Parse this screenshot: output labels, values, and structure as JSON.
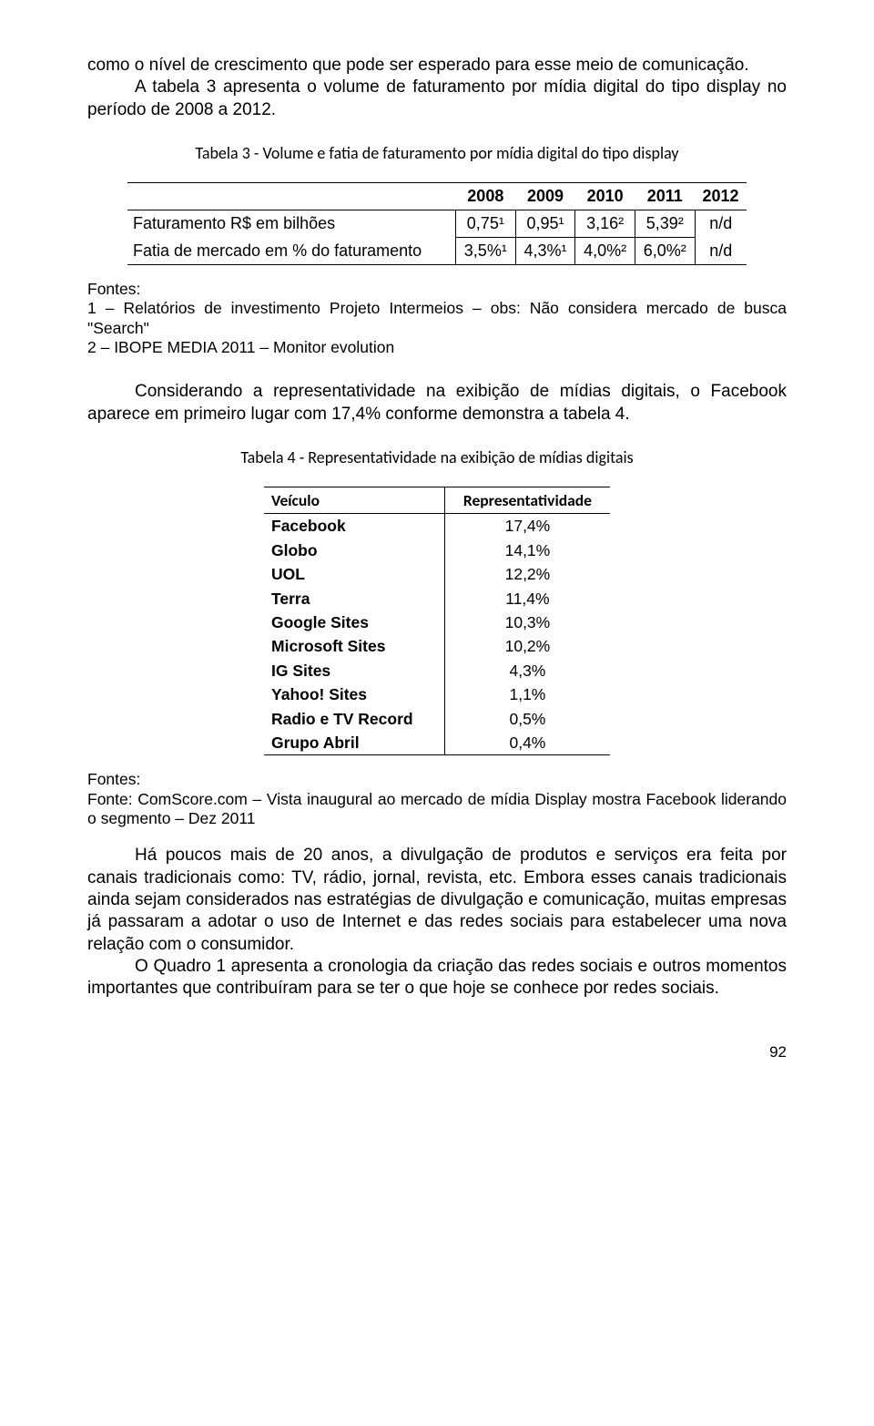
{
  "para1": "como o nível de crescimento que pode ser esperado para esse meio de comunicação.",
  "para2": "A tabela 3 apresenta o volume de faturamento por mídia digital do tipo display no período de 2008 a 2012.",
  "table3": {
    "caption": "Tabela 3 - Volume e fatia de faturamento por mídia digital do tipo display",
    "header_blank": "",
    "years": [
      "2008",
      "2009",
      "2010",
      "2011",
      "2012"
    ],
    "rows": [
      {
        "label": "Faturamento R$ em bilhões",
        "cells": [
          "0,75¹",
          "0,95¹",
          "3,16²",
          "5,39²",
          "n/d"
        ]
      },
      {
        "label": "Fatia de mercado em % do faturamento",
        "cells": [
          "3,5%¹",
          "4,3%¹",
          "4,0%²",
          "6,0%²",
          "n/d"
        ]
      }
    ]
  },
  "fontes1": {
    "title": "Fontes:",
    "l1": "1 – Relatórios de investimento Projeto Intermeios – obs: Não considera mercado de busca \"Search\"",
    "l2": "2 – IBOPE MEDIA 2011 – Monitor evolution"
  },
  "para3": "Considerando a representatividade na exibição de mídias digitais, o Facebook aparece em primeiro lugar com 17,4% conforme demonstra a tabela 4.",
  "table4": {
    "caption": "Tabela 4 - Representatividade na exibição de mídias digitais",
    "col1": "Veículo",
    "col2": "Representatividade",
    "rows": [
      {
        "v": "Facebook",
        "r": "17,4%"
      },
      {
        "v": "Globo",
        "r": "14,1%"
      },
      {
        "v": "UOL",
        "r": "12,2%"
      },
      {
        "v": "Terra",
        "r": "11,4%"
      },
      {
        "v": "Google Sites",
        "r": "10,3%"
      },
      {
        "v": "Microsoft Sites",
        "r": "10,2%"
      },
      {
        "v": "IG Sites",
        "r": "4,3%"
      },
      {
        "v": "Yahoo! Sites",
        "r": "1,1%"
      },
      {
        "v": "Radio e TV Record",
        "r": "0,5%"
      },
      {
        "v": "Grupo Abril",
        "r": "0,4%"
      }
    ]
  },
  "fontes2": {
    "title": "Fontes:",
    "text": "Fonte: ComScore.com – Vista inaugural ao mercado de mídia Display mostra Facebook liderando o segmento – Dez 2011"
  },
  "para4": "Há poucos mais de 20 anos, a divulgação de produtos e serviços era feita por canais tradicionais como: TV, rádio, jornal, revista, etc. Embora esses canais tradicionais ainda sejam considerados nas estratégias de divulgação e comunicação, muitas empresas já passaram a adotar o uso de Internet e das redes sociais para estabelecer uma nova relação com o consumidor.",
  "para5": "O Quadro 1 apresenta a cronologia da criação das redes sociais e outros momentos importantes que contribuíram para se ter o que hoje se conhece por redes sociais.",
  "page_number": "92"
}
